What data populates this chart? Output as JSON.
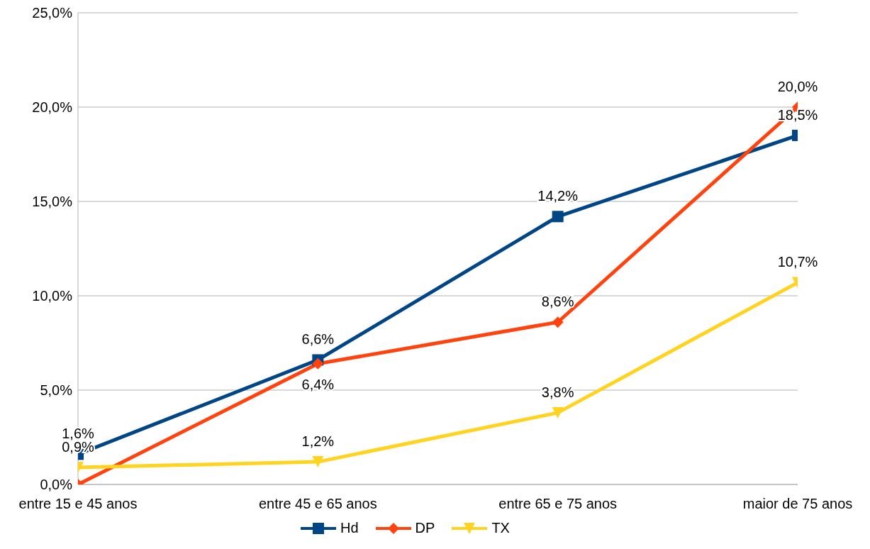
{
  "chart_data": {
    "type": "line",
    "categories": [
      "entre 15 e 45 anos",
      "entre 45 e 65 anos",
      "entre 65 e 75 anos",
      "maior de 75 anos"
    ],
    "series": [
      {
        "name": "Hd",
        "color": "#004586",
        "marker": "square",
        "values": [
          1.6,
          6.6,
          14.2,
          18.5
        ],
        "value_labels": [
          "1,6%",
          "6,6%",
          "14,2%",
          "18,5%"
        ]
      },
      {
        "name": "DP",
        "color": "#ff420e",
        "marker": "diamond",
        "values": [
          0.0,
          6.4,
          8.6,
          20.0
        ],
        "value_labels": [
          null,
          "6,4%",
          "8,6%",
          "20,0%"
        ]
      },
      {
        "name": "TX",
        "color": "#ffd320",
        "marker": "triangle",
        "values": [
          0.9,
          1.2,
          3.8,
          10.7
        ],
        "value_labels": [
          "0,9%",
          "1,2%",
          "3,8%",
          "10,7%"
        ]
      }
    ],
    "ylim": [
      0,
      25
    ],
    "yticks": [
      {
        "value": 0,
        "label": "0,0%"
      },
      {
        "value": 5,
        "label": "5,0%"
      },
      {
        "value": 10,
        "label": "10,0%"
      },
      {
        "value": 15,
        "label": "15,0%"
      },
      {
        "value": 20,
        "label": "20,0%"
      },
      {
        "value": 25,
        "label": "25,0%"
      }
    ],
    "grid": "y",
    "legend": "bottom",
    "line_style": "solid"
  }
}
